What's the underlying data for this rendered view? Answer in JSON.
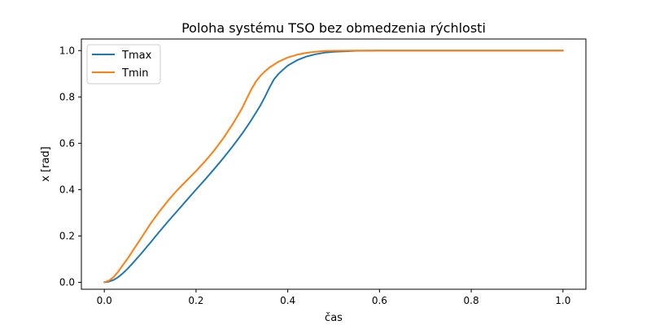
{
  "chart_data": {
    "type": "line",
    "title": "Poloha systému TSO bez obmedzenia rýchlosti",
    "xlabel": "čas",
    "ylabel": "x [rad]",
    "xlim": [
      -0.05,
      1.05
    ],
    "ylim": [
      -0.03,
      1.05
    ],
    "x_ticks": [
      0.0,
      0.2,
      0.4,
      0.6,
      0.8,
      1.0
    ],
    "y_ticks": [
      0.0,
      0.2,
      0.4,
      0.6,
      0.8,
      1.0
    ],
    "x_tick_labels": [
      "0.0",
      "0.2",
      "0.4",
      "0.6",
      "0.8",
      "1.0"
    ],
    "y_tick_labels": [
      "0.0",
      "0.2",
      "0.4",
      "0.6",
      "0.8",
      "1.0"
    ],
    "grid": false,
    "legend_position": "top-left",
    "series": [
      {
        "name": "Tmax",
        "color": "#1f77b4",
        "x": [
          0.0,
          0.01,
          0.02,
          0.03,
          0.04,
          0.05,
          0.06,
          0.08,
          0.1,
          0.12,
          0.14,
          0.16,
          0.18,
          0.2,
          0.22,
          0.24,
          0.26,
          0.28,
          0.3,
          0.32,
          0.34,
          0.35,
          0.36,
          0.37,
          0.38,
          0.39,
          0.4,
          0.42,
          0.44,
          0.46,
          0.48,
          0.5,
          0.55,
          0.6,
          0.7,
          0.8,
          0.9,
          1.0
        ],
        "y": [
          0.0,
          0.003,
          0.01,
          0.022,
          0.038,
          0.057,
          0.078,
          0.123,
          0.17,
          0.218,
          0.265,
          0.31,
          0.355,
          0.4,
          0.444,
          0.49,
          0.537,
          0.587,
          0.64,
          0.698,
          0.762,
          0.8,
          0.84,
          0.876,
          0.9,
          0.918,
          0.935,
          0.958,
          0.974,
          0.984,
          0.991,
          0.995,
          0.999,
          1.0,
          1.0,
          1.0,
          1.0,
          1.0
        ]
      },
      {
        "name": "Tmin",
        "color": "#ff7f0e",
        "x": [
          0.0,
          0.01,
          0.02,
          0.03,
          0.04,
          0.05,
          0.06,
          0.08,
          0.1,
          0.12,
          0.14,
          0.16,
          0.18,
          0.2,
          0.22,
          0.24,
          0.26,
          0.28,
          0.3,
          0.31,
          0.32,
          0.33,
          0.34,
          0.35,
          0.36,
          0.38,
          0.4,
          0.42,
          0.44,
          0.46,
          0.48,
          0.5,
          0.55,
          0.6,
          0.7,
          0.8,
          0.9,
          1.0
        ],
        "y": [
          0.0,
          0.007,
          0.022,
          0.045,
          0.073,
          0.1,
          0.13,
          0.19,
          0.25,
          0.305,
          0.355,
          0.4,
          0.44,
          0.48,
          0.523,
          0.57,
          0.623,
          0.683,
          0.75,
          0.79,
          0.83,
          0.865,
          0.89,
          0.91,
          0.927,
          0.952,
          0.97,
          0.982,
          0.99,
          0.995,
          0.998,
          0.999,
          1.0,
          1.0,
          1.0,
          1.0,
          1.0,
          1.0
        ]
      }
    ]
  }
}
